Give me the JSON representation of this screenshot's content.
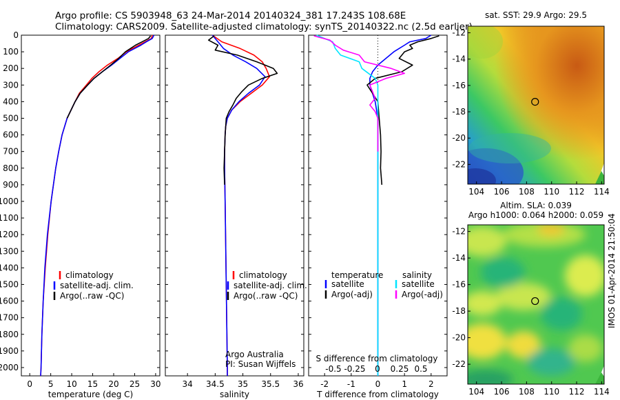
{
  "header": {
    "title_line1": "Argo profile: CS 5903948_63 24-Mar-2014 20140324_381 17.243S 108.68E",
    "title_line2": "Climatology: CARS2009. Satellite-adjusted climatology: synTS_20140322.nc (2.5d earlier)"
  },
  "side_stamp": "IMOS 01-Apr-2014 21:50:04",
  "colors": {
    "climatology": "#ff0000",
    "satellite": "#0000ff",
    "argo": "#000000",
    "sat_salinity": "#00e5ff",
    "argo_salinity": "#ff00ff"
  },
  "chart_data": [
    {
      "id": "temperature",
      "type": "line",
      "xlabel": "temperature (deg C)",
      "ylabel": "",
      "xlim": [
        -2,
        31
      ],
      "ylim": [
        2050,
        0
      ],
      "xticks": [
        0,
        5,
        10,
        15,
        20,
        25,
        30
      ],
      "yticks": [
        0,
        100,
        200,
        300,
        400,
        500,
        600,
        700,
        800,
        900,
        1000,
        1100,
        1200,
        1300,
        1400,
        1500,
        1600,
        1700,
        1800,
        1900,
        2000
      ],
      "legend": [
        "climatology",
        "satellite-adj. clim.",
        "Argo(..raw -QC)"
      ],
      "legend_position": "lower-middle",
      "series": [
        {
          "name": "climatology",
          "color": "#ff0000",
          "depth": [
            0,
            20,
            40,
            60,
            80,
            100,
            140,
            180,
            220,
            260,
            300,
            350,
            400,
            500,
            600,
            700,
            800,
            1000,
            1200,
            1400,
            1600,
            1800,
            2000,
            2050
          ],
          "values": [
            29.2,
            29.0,
            27.5,
            26.0,
            24.5,
            23.0,
            21.0,
            18.5,
            16.5,
            14.8,
            13.5,
            11.8,
            10.8,
            8.9,
            7.7,
            6.9,
            6.2,
            5.1,
            4.3,
            3.7,
            3.2,
            2.9,
            2.7,
            2.6
          ]
        },
        {
          "name": "satellite-adj. clim.",
          "color": "#0000ff",
          "depth": [
            0,
            20,
            40,
            60,
            80,
            100,
            140,
            180,
            220,
            260,
            300,
            350,
            400,
            500,
            600,
            700,
            800,
            1000,
            1200,
            1400,
            1600,
            1800,
            2000,
            2050
          ],
          "values": [
            29.6,
            29.2,
            27.8,
            26.5,
            25.0,
            23.5,
            21.5,
            19.5,
            17.3,
            15.3,
            13.8,
            12.0,
            10.8,
            8.9,
            7.7,
            6.9,
            6.2,
            5.1,
            4.2,
            3.6,
            3.2,
            2.9,
            2.7,
            2.6
          ]
        },
        {
          "name": "Argo(..raw -QC)",
          "color": "#000000",
          "depth": [
            4,
            20,
            40,
            60,
            80,
            100,
            140,
            180,
            220,
            260,
            300,
            350,
            400,
            500
          ],
          "values": [
            28.8,
            28.3,
            26.8,
            25.2,
            24.0,
            22.8,
            21.2,
            19.3,
            17.3,
            15.3,
            13.8,
            12.0,
            10.8,
            8.9
          ]
        }
      ]
    },
    {
      "id": "salinity",
      "type": "line",
      "xlabel": "salinity",
      "xlim": [
        33.6,
        36.1
      ],
      "ylim": [
        2050,
        0
      ],
      "xticks": [
        34,
        34.5,
        35,
        35.5,
        36
      ],
      "xticklabels": [
        "34",
        "34.5",
        "35",
        "35.5",
        "36"
      ],
      "legend": [
        "climatology",
        "satellite-adj. clim.",
        "Argo(..raw -QC)"
      ],
      "legend_position": "lower-right",
      "annotations": [
        "Argo Australia",
        "PI: Susan Wijffels"
      ],
      "series": [
        {
          "name": "climatology",
          "color": "#ff0000",
          "depth": [
            0,
            40,
            80,
            120,
            160,
            200,
            250,
            300,
            350,
            400,
            450,
            500,
            550,
            600,
            700,
            800,
            1000,
            1500,
            2000,
            2050
          ],
          "values": [
            34.45,
            34.62,
            34.95,
            35.2,
            35.35,
            35.42,
            35.48,
            35.35,
            35.15,
            34.95,
            34.8,
            34.72,
            34.69,
            34.68,
            34.67,
            34.67,
            34.68,
            34.7,
            34.72,
            34.72
          ]
        },
        {
          "name": "satellite-adj. clim.",
          "color": "#0000ff",
          "depth": [
            0,
            40,
            80,
            120,
            160,
            200,
            250,
            300,
            350,
            400,
            450,
            500,
            550,
            600,
            700,
            800,
            1000,
            1500,
            2000,
            2050
          ],
          "values": [
            34.45,
            34.55,
            34.65,
            34.82,
            35.05,
            35.25,
            35.4,
            35.3,
            35.1,
            34.93,
            34.8,
            34.72,
            34.69,
            34.68,
            34.67,
            34.67,
            34.68,
            34.7,
            34.72,
            34.72
          ]
        },
        {
          "name": "Argo(..raw -QC)",
          "color": "#000000",
          "depth": [
            4,
            30,
            60,
            90,
            120,
            160,
            200,
            230,
            260,
            300,
            340,
            380,
            420,
            460,
            500,
            600,
            700,
            800,
            900
          ],
          "values": [
            34.48,
            34.38,
            34.55,
            34.5,
            34.9,
            35.25,
            35.55,
            35.62,
            35.35,
            35.1,
            34.98,
            34.88,
            34.82,
            34.75,
            34.7,
            34.68,
            34.67,
            34.66,
            34.67
          ]
        }
      ]
    },
    {
      "id": "difference",
      "type": "line",
      "xlabel": "T difference from climatology",
      "xlabel_top": "S difference from climatology",
      "xlim": [
        -2.6,
        2.6
      ],
      "ylim": [
        2050,
        0
      ],
      "xticks": [
        -2,
        -1,
        0,
        1,
        2
      ],
      "xticklabels": [
        "-2",
        "-1",
        "0",
        "1",
        "2"
      ],
      "xticks_secondary": [
        "-0.5",
        "-0.25",
        "0",
        "0.25",
        "0.5"
      ],
      "legend_titles": [
        "temperature",
        "salinity"
      ],
      "legend": [
        "satellite",
        "Argo(-adj)",
        "satellite",
        "Argo(-adj)"
      ],
      "series": [
        {
          "name": "temperature satellite",
          "color": "#0000ff",
          "depth": [
            0,
            20,
            40,
            60,
            80,
            100,
            140,
            180,
            220,
            260,
            300,
            400,
            500,
            700,
            1000,
            2000,
            2050
          ],
          "values": [
            2.0,
            1.8,
            1.2,
            1.0,
            0.8,
            0.6,
            0.3,
            0.0,
            -0.2,
            -0.3,
            -0.3,
            -0.1,
            0.0,
            0.0,
            0.0,
            0.0,
            0.0
          ]
        },
        {
          "name": "temperature Argo(-adj)",
          "color": "#000000",
          "depth": [
            4,
            20,
            40,
            60,
            80,
            100,
            140,
            180,
            220,
            260,
            300,
            350,
            400,
            500,
            600,
            700,
            800,
            900
          ],
          "values": [
            2.3,
            2.0,
            1.5,
            1.2,
            1.3,
            1.0,
            0.8,
            1.3,
            0.9,
            -0.1,
            -0.4,
            -0.2,
            0.0,
            0.05,
            0.1,
            0.12,
            0.1,
            0.15
          ]
        },
        {
          "name": "salinity satellite",
          "color": "#00e5ff",
          "depth": [
            0,
            40,
            80,
            120,
            160,
            200,
            260,
            300,
            350,
            400,
            500,
            700,
            1000,
            2000,
            2050
          ],
          "values": [
            -2.3,
            -1.7,
            -1.6,
            -1.4,
            -0.7,
            -0.6,
            -0.1,
            0.0,
            0.0,
            0.0,
            0.0,
            0.0,
            0.0,
            0.0,
            0.0
          ]
        },
        {
          "name": "salinity Argo(-adj)",
          "color": "#ff00ff",
          "depth": [
            4,
            30,
            60,
            90,
            120,
            160,
            200,
            230,
            260,
            300,
            340,
            380,
            420,
            460,
            500,
            600,
            700
          ],
          "values": [
            -2.4,
            -1.8,
            -1.6,
            -1.3,
            -0.7,
            -0.5,
            0.5,
            1.0,
            0.3,
            -0.3,
            -0.2,
            -0.1,
            -0.3,
            -0.1,
            0.0,
            0.0,
            0.0
          ]
        }
      ]
    },
    {
      "id": "sst-map",
      "type": "heatmap",
      "title": "sat. SST: 29.9  Argo: 29.5",
      "xlim": [
        103.3,
        114.2
      ],
      "ylim": [
        -23.5,
        -11.5
      ],
      "xticks": [
        104,
        106,
        108,
        110,
        112,
        114
      ],
      "yticks": [
        -12,
        -14,
        -16,
        -18,
        -20,
        -22
      ],
      "marker": {
        "lon": 108.68,
        "lat": -17.243
      }
    },
    {
      "id": "sla-map",
      "type": "heatmap",
      "title_line1": "Altim. SLA: 0.039",
      "title_line2": "Argo h1000: 0.064 h2000: 0.059",
      "xlim": [
        103.3,
        114.2
      ],
      "ylim": [
        -23.5,
        -11.5
      ],
      "xticks": [
        104,
        106,
        108,
        110,
        112,
        114
      ],
      "yticks": [
        -12,
        -14,
        -16,
        -18,
        -20,
        -22
      ],
      "marker": {
        "lon": 108.68,
        "lat": -17.243
      }
    }
  ]
}
